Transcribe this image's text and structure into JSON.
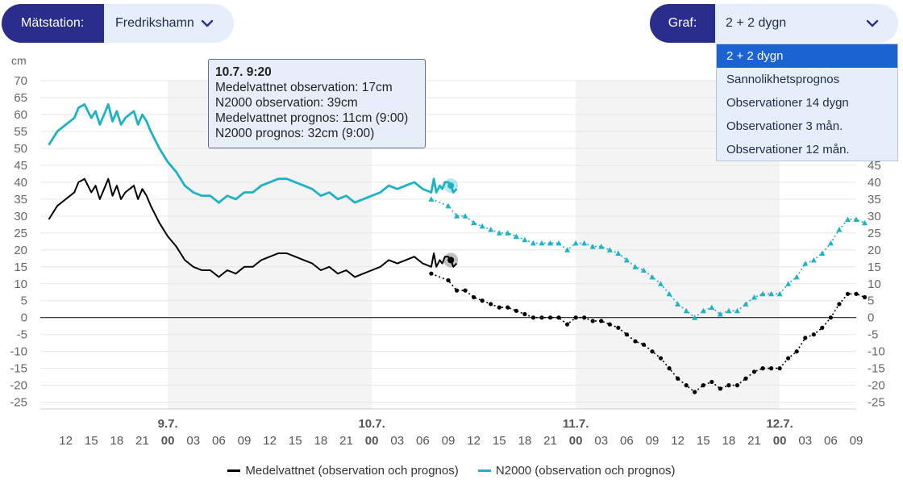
{
  "station": {
    "label": "Mätstation:",
    "value": "Fredrikshamn"
  },
  "graf": {
    "label": "Graf:",
    "value": "2 + 2 dygn",
    "options": [
      "2 + 2 dygn",
      "Sannolikhetsprognos",
      "Observationer 14 dygn",
      "Observationer 3 mån.",
      "Observationer 12 mån."
    ],
    "selected": 0
  },
  "tooltip": {
    "title": "10.7. 9:20",
    "lines": [
      "Medelvattnet observation: 17cm",
      "N2000 observation: 39cm",
      "Medelvattnet prognos: 11cm (9:00)",
      "N2000 prognos: 32cm (9:00)"
    ]
  },
  "colors": {
    "black": "#000000",
    "teal": "#1fb2c4",
    "pillDark": "#2b2d8c",
    "pillLight": "#e6eefb",
    "selected": "#1a63d1"
  },
  "chart_data": {
    "type": "line",
    "yunit": "cm",
    "ylim": [
      -27,
      70
    ],
    "yticks": [
      70,
      65,
      60,
      55,
      50,
      45,
      40,
      35,
      30,
      25,
      20,
      15,
      10,
      5,
      0,
      -5,
      -10,
      -15,
      -20,
      -25
    ],
    "xrange_hours": [
      9,
      105
    ],
    "day_labels": [
      {
        "h": 24,
        "label": "9.7."
      },
      {
        "h": 48,
        "label": "10.7."
      },
      {
        "h": 72,
        "label": "11.7."
      },
      {
        "h": 96,
        "label": "12.7."
      }
    ],
    "hour_ticks": [
      {
        "h": 12,
        "label": "12"
      },
      {
        "h": 15,
        "label": "15"
      },
      {
        "h": 18,
        "label": "18"
      },
      {
        "h": 21,
        "label": "21"
      },
      {
        "h": 24,
        "label": "00"
      },
      {
        "h": 27,
        "label": "03"
      },
      {
        "h": 30,
        "label": "06"
      },
      {
        "h": 33,
        "label": "09"
      },
      {
        "h": 36,
        "label": "12"
      },
      {
        "h": 39,
        "label": "15"
      },
      {
        "h": 42,
        "label": "18"
      },
      {
        "h": 45,
        "label": "21"
      },
      {
        "h": 48,
        "label": "00"
      },
      {
        "h": 51,
        "label": "03"
      },
      {
        "h": 54,
        "label": "06"
      },
      {
        "h": 57,
        "label": "09"
      },
      {
        "h": 60,
        "label": "12"
      },
      {
        "h": 63,
        "label": "15"
      },
      {
        "h": 66,
        "label": "18"
      },
      {
        "h": 69,
        "label": "21"
      },
      {
        "h": 72,
        "label": "00"
      },
      {
        "h": 75,
        "label": "03"
      },
      {
        "h": 78,
        "label": "06"
      },
      {
        "h": 81,
        "label": "09"
      },
      {
        "h": 84,
        "label": "12"
      },
      {
        "h": 87,
        "label": "15"
      },
      {
        "h": 90,
        "label": "18"
      },
      {
        "h": 93,
        "label": "21"
      },
      {
        "h": 96,
        "label": "00"
      },
      {
        "h": 99,
        "label": "03"
      },
      {
        "h": 102,
        "label": "06"
      },
      {
        "h": 105,
        "label": "09"
      }
    ],
    "shaded_days": [
      [
        24,
        48
      ],
      [
        72,
        96
      ]
    ],
    "legend": [
      "Medelvattnet (observation och prognos)",
      "N2000 (observation och prognos)"
    ],
    "offset": 22,
    "observation": {
      "name": "Medelvattnet observation",
      "h": [
        10,
        11,
        12,
        13,
        13.5,
        14.2,
        15,
        15.5,
        16,
        16.5,
        17,
        17.5,
        18,
        18.5,
        19,
        19.5,
        20,
        20.5,
        21,
        21.5,
        22,
        23,
        24,
        25,
        26,
        27,
        28,
        29,
        30,
        31,
        32,
        33,
        34,
        35,
        36,
        37,
        38,
        39,
        40,
        41,
        42,
        43,
        44,
        45,
        46,
        47,
        48,
        49,
        50,
        51,
        52,
        53,
        54,
        55,
        55.3,
        55.6,
        56,
        56.3,
        56.6,
        57,
        57.3,
        57.6,
        58
      ],
      "v": [
        29,
        33,
        35,
        37,
        40,
        41,
        37,
        39,
        35,
        38,
        41,
        36,
        39,
        35,
        37,
        38,
        39,
        35,
        38,
        36,
        33,
        28,
        24,
        21,
        17,
        15,
        14,
        14,
        12,
        14,
        13,
        15,
        15,
        17,
        18,
        19,
        19,
        18,
        17,
        16,
        14,
        15,
        13,
        14,
        12,
        13,
        14,
        15,
        17,
        16,
        17,
        18,
        16,
        15,
        19,
        15,
        17,
        16,
        18,
        18,
        17,
        15,
        16
      ]
    },
    "prognosis": {
      "name": "Medelvattnet prognos",
      "h": [
        55,
        57,
        58,
        59,
        60,
        61,
        62,
        63,
        64,
        65,
        66,
        67,
        68,
        69,
        70,
        71,
        72,
        73,
        74,
        75,
        76,
        77,
        78,
        79,
        80,
        81,
        82,
        83,
        84,
        85,
        86,
        87,
        88,
        89,
        90,
        91,
        92,
        93,
        94,
        95,
        96,
        97,
        98,
        99,
        100,
        101,
        102,
        103,
        104,
        105,
        106
      ],
      "v": [
        13,
        11,
        8,
        8,
        6,
        5,
        4,
        3,
        3,
        2,
        1,
        0,
        0,
        0,
        0,
        -2,
        0,
        0,
        -1,
        -1,
        -2,
        -3,
        -5,
        -7,
        -8,
        -10,
        -12,
        -15,
        -18,
        -20,
        -22,
        -20,
        -19,
        -21,
        -20,
        -20,
        -18,
        -16,
        -15,
        -15,
        -15,
        -12,
        -10,
        -6,
        -5,
        -3,
        0,
        4,
        7,
        7,
        6
      ]
    }
  }
}
